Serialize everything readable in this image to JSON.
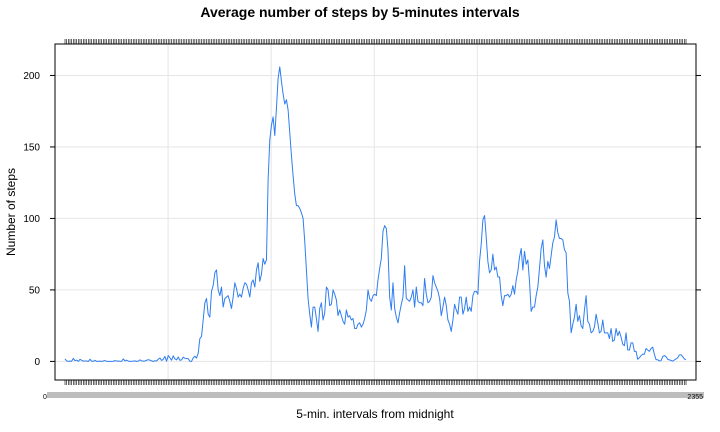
{
  "chart_data": {
    "type": "line",
    "title": "Average number of steps by 5-minutes intervals",
    "xlabel": "5-min. intervals from midnight",
    "ylabel": "Number of steps",
    "ylim": [
      -13,
      222
    ],
    "yticks": [
      0,
      50,
      100,
      150,
      200
    ],
    "grid": true,
    "legend": "none",
    "x_ticks_first": "0",
    "x_ticks_last": "2355",
    "series": [
      {
        "color": "#2f7ef0",
        "x_start_interval": 0,
        "x_step_minutes": 5,
        "values": [
          1.7,
          0.3,
          0.1,
          0.2,
          0.1,
          2.1,
          0.5,
          0.9,
          0,
          1.5,
          0.8,
          0.2,
          0.3,
          0.3,
          0,
          1.5,
          0.2,
          0,
          0.8,
          0,
          0.1,
          0.2,
          0,
          0.3,
          0.6,
          0.1,
          0,
          0,
          0,
          0.1,
          0.6,
          0.2,
          0.3,
          0.1,
          0,
          1.8,
          0.3,
          0.9,
          0.2,
          0,
          0.1,
          0.2,
          0.4,
          0,
          0.2,
          1.1,
          0.4,
          0.2,
          0.3,
          0.8,
          1.2,
          0.9,
          0.4,
          0,
          0.5,
          0.3,
          1.5,
          2.4,
          0.7,
          1.4,
          3.5,
          0.1,
          4.1,
          2.5,
          0.8,
          3.9,
          1.8,
          1.1,
          3.1,
          0.8,
          1.1,
          3.0,
          2.2,
          2.0,
          1.9,
          0.1,
          0,
          2.5,
          3.6,
          2.3,
          5.7,
          16.0,
          17.5,
          29.0,
          41.0,
          44.0,
          33.0,
          31.0,
          49.0,
          53.0,
          62.0,
          64.0,
          50.0,
          46.0,
          52.0,
          38.0,
          44.0,
          45.0,
          46.0,
          42.0,
          37.0,
          45.0,
          55.0,
          51.0,
          45.0,
          47.0,
          45.0,
          51.0,
          55.0,
          54.0,
          50.0,
          45.0,
          55.0,
          57.0,
          52.0,
          64.0,
          69.0,
          56.0,
          61.0,
          72.0,
          68.0,
          71.0,
          127.0,
          155.0,
          165.0,
          171.0,
          158.0,
          177.0,
          198.0,
          206.0,
          196.0,
          187.0,
          180.0,
          183.0,
          176.0,
          160.0,
          144.0,
          130.0,
          117.0,
          109.0,
          109.0,
          107.0,
          104.0,
          100.0,
          84.0,
          64.0,
          44.0,
          33.0,
          24.0,
          38.0,
          38.0,
          30.0,
          21.0,
          37.0,
          41.0,
          29.0,
          34.0,
          52.0,
          50.0,
          39.0,
          40.0,
          50.0,
          47.0,
          43.0,
          32.0,
          36.0,
          32.0,
          28.0,
          26.0,
          36.0,
          31.0,
          32.0,
          29.0,
          30.0,
          23.0,
          23.0,
          26.0,
          27.0,
          24.0,
          26.0,
          30.0,
          36.0,
          50.0,
          44.0,
          42.0,
          46.0,
          47.0,
          46.0,
          57.0,
          65.0,
          72.0,
          91.0,
          95.0,
          93.0,
          78.0,
          45.0,
          36.0,
          55.0,
          37.0,
          31.0,
          27.0,
          34.0,
          40.0,
          45.0,
          67.0,
          44.0,
          43.0,
          42.0,
          45.0,
          50.0,
          38.0,
          52.0,
          42.0,
          41.0,
          41.0,
          39.0,
          58.0,
          47.0,
          41.0,
          42.0,
          45.0,
          60.0,
          55.0,
          52.0,
          49.0,
          44.0,
          32.0,
          38.0,
          45.0,
          39.0,
          29.0,
          26.0,
          21.0,
          29.0,
          40.0,
          36.0,
          33.0,
          45.0,
          45.0,
          33.0,
          37.0,
          45.0,
          35.0,
          38.0,
          35.0,
          46.0,
          49.0,
          49.0,
          47.0,
          70.0,
          82.0,
          99.0,
          102.0,
          87.0,
          70.0,
          62.0,
          64.0,
          75.0,
          64.0,
          66.0,
          59.0,
          59.0,
          46.0,
          39.0,
          46.0,
          46.0,
          47.0,
          45.0,
          47.0,
          53.0,
          47.0,
          57.0,
          63.0,
          73.0,
          79.0,
          64.0,
          77.0,
          68.0,
          71.0,
          56.0,
          35.0,
          38.0,
          38.0,
          46.0,
          52.0,
          65.0,
          79.0,
          85.0,
          67.0,
          59.0,
          70.0,
          65.0,
          74.0,
          83.0,
          87.0,
          99.0,
          90.0,
          86.0,
          86.0,
          85.0,
          78.0,
          76.0,
          48.0,
          42.0,
          20.0,
          26.0,
          31.0,
          40.0,
          28.0,
          32.0,
          25.0,
          23.0,
          36.0,
          46.0,
          28.0,
          26.0,
          20.0,
          21.0,
          24.0,
          33.0,
          27.0,
          20.0,
          21.0,
          29.0,
          20.0,
          20.0,
          20.0,
          16.0,
          23.0,
          14.0,
          15.0,
          23.0,
          18.0,
          21.0,
          17.0,
          12.0,
          11.0,
          20.0,
          8.0,
          8.0,
          13.0,
          13.0,
          7.0,
          7.0,
          1.5,
          2.6,
          4.0,
          5.1,
          5.0,
          9.0,
          8.0,
          7.0,
          9.0,
          10.0,
          5.0,
          1.3,
          1.1,
          0.4,
          0.5,
          3.4,
          4.1,
          3.3,
          1.5,
          1.1,
          0.7,
          0.2,
          1.0,
          1.7,
          2.5,
          4.5,
          4.7,
          3.3,
          1.7,
          1.1
        ]
      }
    ]
  }
}
